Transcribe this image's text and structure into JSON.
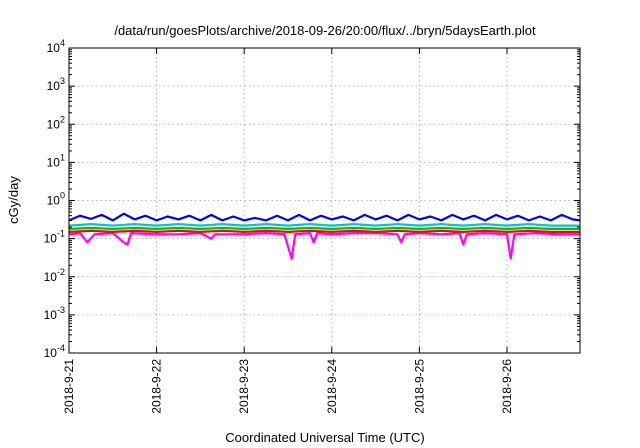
{
  "chart_data": {
    "type": "line",
    "title": "/data/run/goesPlots/archive/2018-09-26/20:00/flux/../bryn/5daysEarth.plot",
    "xlabel": "Coordinated Universal Time (UTC)",
    "ylabel": "cGy/day",
    "x_scale": "time",
    "y_scale": "log",
    "xlim": [
      "2018-09-21T00:00",
      "2018-09-26T20:00"
    ],
    "ylim": [
      0.0001,
      10000
    ],
    "grid": true,
    "legend": "none",
    "x_ticks": [
      {
        "value": "2018-09-21T00:00",
        "label": "2018-9-21"
      },
      {
        "value": "2018-09-22T00:00",
        "label": "2018-9-22"
      },
      {
        "value": "2018-09-23T00:00",
        "label": "2018-9-23"
      },
      {
        "value": "2018-09-24T00:00",
        "label": "2018-9-24"
      },
      {
        "value": "2018-09-25T00:00",
        "label": "2018-9-25"
      },
      {
        "value": "2018-09-26T00:00",
        "label": "2018-9-26"
      }
    ],
    "y_ticks": [
      {
        "value": 0.0001,
        "base": "10",
        "exp": "-4"
      },
      {
        "value": 0.001,
        "base": "10",
        "exp": "-3"
      },
      {
        "value": 0.01,
        "base": "10",
        "exp": "-2"
      },
      {
        "value": 0.1,
        "base": "10",
        "exp": "-1"
      },
      {
        "value": 1,
        "base": "10",
        "exp": "0"
      },
      {
        "value": 10,
        "base": "10",
        "exp": "1"
      },
      {
        "value": 100,
        "base": "10",
        "exp": "2"
      },
      {
        "value": 1000,
        "base": "10",
        "exp": "3"
      },
      {
        "value": 10000,
        "base": "10",
        "exp": "4"
      }
    ],
    "series": [
      {
        "color": "#ff00ff",
        "points": [
          [
            "2018-09-21T00:00",
            0.13
          ],
          [
            "2018-09-21T03:00",
            0.14
          ],
          [
            "2018-09-21T05:00",
            0.08
          ],
          [
            "2018-09-21T07:00",
            0.13
          ],
          [
            "2018-09-21T12:00",
            0.14
          ],
          [
            "2018-09-21T15:00",
            0.08
          ],
          [
            "2018-09-21T16:00",
            0.07
          ],
          [
            "2018-09-21T17:00",
            0.14
          ],
          [
            "2018-09-22T00:00",
            0.13
          ],
          [
            "2018-09-22T06:00",
            0.13
          ],
          [
            "2018-09-22T12:00",
            0.14
          ],
          [
            "2018-09-22T15:00",
            0.1
          ],
          [
            "2018-09-22T16:00",
            0.13
          ],
          [
            "2018-09-23T00:00",
            0.13
          ],
          [
            "2018-09-23T06:00",
            0.14
          ],
          [
            "2018-09-23T11:00",
            0.13
          ],
          [
            "2018-09-23T13:00",
            0.03
          ],
          [
            "2018-09-23T14:00",
            0.13
          ],
          [
            "2018-09-23T18:00",
            0.14
          ],
          [
            "2018-09-23T19:00",
            0.08
          ],
          [
            "2018-09-23T20:00",
            0.14
          ],
          [
            "2018-09-24T00:00",
            0.13
          ],
          [
            "2018-09-24T06:00",
            0.14
          ],
          [
            "2018-09-24T12:00",
            0.14
          ],
          [
            "2018-09-24T18:00",
            0.13
          ],
          [
            "2018-09-24T19:00",
            0.08
          ],
          [
            "2018-09-24T20:00",
            0.13
          ],
          [
            "2018-09-25T00:00",
            0.14
          ],
          [
            "2018-09-25T06:00",
            0.13
          ],
          [
            "2018-09-25T11:00",
            0.14
          ],
          [
            "2018-09-25T12:00",
            0.07
          ],
          [
            "2018-09-25T13:00",
            0.13
          ],
          [
            "2018-09-25T18:00",
            0.14
          ],
          [
            "2018-09-26T00:00",
            0.13
          ],
          [
            "2018-09-26T01:00",
            0.03
          ],
          [
            "2018-09-26T02:00",
            0.13
          ],
          [
            "2018-09-26T08:00",
            0.14
          ],
          [
            "2018-09-26T14:00",
            0.13
          ],
          [
            "2018-09-26T20:00",
            0.13
          ]
        ]
      },
      {
        "color": "#ff0000",
        "points": [
          [
            "2018-09-21T00:00",
            0.15
          ],
          [
            "2018-09-21T06:00",
            0.16
          ],
          [
            "2018-09-21T12:00",
            0.15
          ],
          [
            "2018-09-21T18:00",
            0.16
          ],
          [
            "2018-09-22T00:00",
            0.15
          ],
          [
            "2018-09-22T06:00",
            0.16
          ],
          [
            "2018-09-22T12:00",
            0.15
          ],
          [
            "2018-09-22T18:00",
            0.16
          ],
          [
            "2018-09-23T00:00",
            0.15
          ],
          [
            "2018-09-23T06:00",
            0.16
          ],
          [
            "2018-09-23T12:00",
            0.15
          ],
          [
            "2018-09-23T18:00",
            0.16
          ],
          [
            "2018-09-24T00:00",
            0.15
          ],
          [
            "2018-09-24T06:00",
            0.16
          ],
          [
            "2018-09-24T12:00",
            0.15
          ],
          [
            "2018-09-24T18:00",
            0.16
          ],
          [
            "2018-09-25T00:00",
            0.15
          ],
          [
            "2018-09-25T06:00",
            0.16
          ],
          [
            "2018-09-25T12:00",
            0.15
          ],
          [
            "2018-09-25T18:00",
            0.16
          ],
          [
            "2018-09-26T00:00",
            0.15
          ],
          [
            "2018-09-26T06:00",
            0.16
          ],
          [
            "2018-09-26T12:00",
            0.15
          ],
          [
            "2018-09-26T20:00",
            0.15
          ]
        ]
      },
      {
        "color": "#00c000",
        "points": [
          [
            "2018-09-21T00:00",
            0.18
          ],
          [
            "2018-09-21T06:00",
            0.19
          ],
          [
            "2018-09-21T12:00",
            0.18
          ],
          [
            "2018-09-21T18:00",
            0.19
          ],
          [
            "2018-09-22T00:00",
            0.18
          ],
          [
            "2018-09-22T06:00",
            0.19
          ],
          [
            "2018-09-22T12:00",
            0.18
          ],
          [
            "2018-09-22T18:00",
            0.19
          ],
          [
            "2018-09-23T00:00",
            0.18
          ],
          [
            "2018-09-23T06:00",
            0.19
          ],
          [
            "2018-09-23T12:00",
            0.18
          ],
          [
            "2018-09-23T18:00",
            0.19
          ],
          [
            "2018-09-24T00:00",
            0.18
          ],
          [
            "2018-09-24T06:00",
            0.19
          ],
          [
            "2018-09-24T12:00",
            0.18
          ],
          [
            "2018-09-24T18:00",
            0.19
          ],
          [
            "2018-09-25T00:00",
            0.18
          ],
          [
            "2018-09-25T06:00",
            0.19
          ],
          [
            "2018-09-25T12:00",
            0.18
          ],
          [
            "2018-09-25T18:00",
            0.19
          ],
          [
            "2018-09-26T00:00",
            0.18
          ],
          [
            "2018-09-26T06:00",
            0.19
          ],
          [
            "2018-09-26T12:00",
            0.18
          ],
          [
            "2018-09-26T20:00",
            0.18
          ]
        ]
      },
      {
        "color": "#00c8c8",
        "points": [
          [
            "2018-09-21T00:00",
            0.22
          ],
          [
            "2018-09-21T06:00",
            0.24
          ],
          [
            "2018-09-21T12:00",
            0.22
          ],
          [
            "2018-09-21T18:00",
            0.24
          ],
          [
            "2018-09-22T00:00",
            0.22
          ],
          [
            "2018-09-22T06:00",
            0.24
          ],
          [
            "2018-09-22T12:00",
            0.22
          ],
          [
            "2018-09-22T18:00",
            0.24
          ],
          [
            "2018-09-23T00:00",
            0.22
          ],
          [
            "2018-09-23T06:00",
            0.24
          ],
          [
            "2018-09-23T12:00",
            0.22
          ],
          [
            "2018-09-23T18:00",
            0.24
          ],
          [
            "2018-09-24T00:00",
            0.22
          ],
          [
            "2018-09-24T06:00",
            0.24
          ],
          [
            "2018-09-24T12:00",
            0.22
          ],
          [
            "2018-09-24T18:00",
            0.24
          ],
          [
            "2018-09-25T00:00",
            0.22
          ],
          [
            "2018-09-25T06:00",
            0.24
          ],
          [
            "2018-09-25T12:00",
            0.22
          ],
          [
            "2018-09-25T18:00",
            0.24
          ],
          [
            "2018-09-26T00:00",
            0.22
          ],
          [
            "2018-09-26T06:00",
            0.24
          ],
          [
            "2018-09-26T12:00",
            0.22
          ],
          [
            "2018-09-26T20:00",
            0.22
          ]
        ]
      },
      {
        "color": "#0000ff",
        "points": [
          [
            "2018-09-21T00:00",
            0.3
          ],
          [
            "2018-09-21T03:00",
            0.4
          ],
          [
            "2018-09-21T06:00",
            0.33
          ],
          [
            "2018-09-21T09:00",
            0.42
          ],
          [
            "2018-09-21T12:00",
            0.3
          ],
          [
            "2018-09-21T15:00",
            0.45
          ],
          [
            "2018-09-21T18:00",
            0.32
          ],
          [
            "2018-09-21T21:00",
            0.4
          ],
          [
            "2018-09-22T00:00",
            0.3
          ],
          [
            "2018-09-22T03:00",
            0.38
          ],
          [
            "2018-09-22T06:00",
            0.32
          ],
          [
            "2018-09-22T09:00",
            0.4
          ],
          [
            "2018-09-22T12:00",
            0.3
          ],
          [
            "2018-09-22T15:00",
            0.42
          ],
          [
            "2018-09-22T18:00",
            0.3
          ],
          [
            "2018-09-22T21:00",
            0.38
          ],
          [
            "2018-09-23T00:00",
            0.3
          ],
          [
            "2018-09-23T03:00",
            0.35
          ],
          [
            "2018-09-23T06:00",
            0.3
          ],
          [
            "2018-09-23T09:00",
            0.4
          ],
          [
            "2018-09-23T12:00",
            0.3
          ],
          [
            "2018-09-23T15:00",
            0.42
          ],
          [
            "2018-09-23T18:00",
            0.3
          ],
          [
            "2018-09-23T21:00",
            0.4
          ],
          [
            "2018-09-24T00:00",
            0.32
          ],
          [
            "2018-09-24T03:00",
            0.38
          ],
          [
            "2018-09-24T06:00",
            0.3
          ],
          [
            "2018-09-24T09:00",
            0.42
          ],
          [
            "2018-09-24T12:00",
            0.32
          ],
          [
            "2018-09-24T15:00",
            0.4
          ],
          [
            "2018-09-24T18:00",
            0.3
          ],
          [
            "2018-09-24T21:00",
            0.42
          ],
          [
            "2018-09-25T00:00",
            0.32
          ],
          [
            "2018-09-25T03:00",
            0.38
          ],
          [
            "2018-09-25T06:00",
            0.3
          ],
          [
            "2018-09-25T09:00",
            0.42
          ],
          [
            "2018-09-25T12:00",
            0.32
          ],
          [
            "2018-09-25T15:00",
            0.4
          ],
          [
            "2018-09-25T18:00",
            0.3
          ],
          [
            "2018-09-25T21:00",
            0.42
          ],
          [
            "2018-09-26T00:00",
            0.32
          ],
          [
            "2018-09-26T03:00",
            0.4
          ],
          [
            "2018-09-26T06:00",
            0.3
          ],
          [
            "2018-09-26T09:00",
            0.38
          ],
          [
            "2018-09-26T12:00",
            0.3
          ],
          [
            "2018-09-26T15:00",
            0.42
          ],
          [
            "2018-09-26T18:00",
            0.32
          ],
          [
            "2018-09-26T20:00",
            0.3
          ]
        ]
      }
    ]
  }
}
